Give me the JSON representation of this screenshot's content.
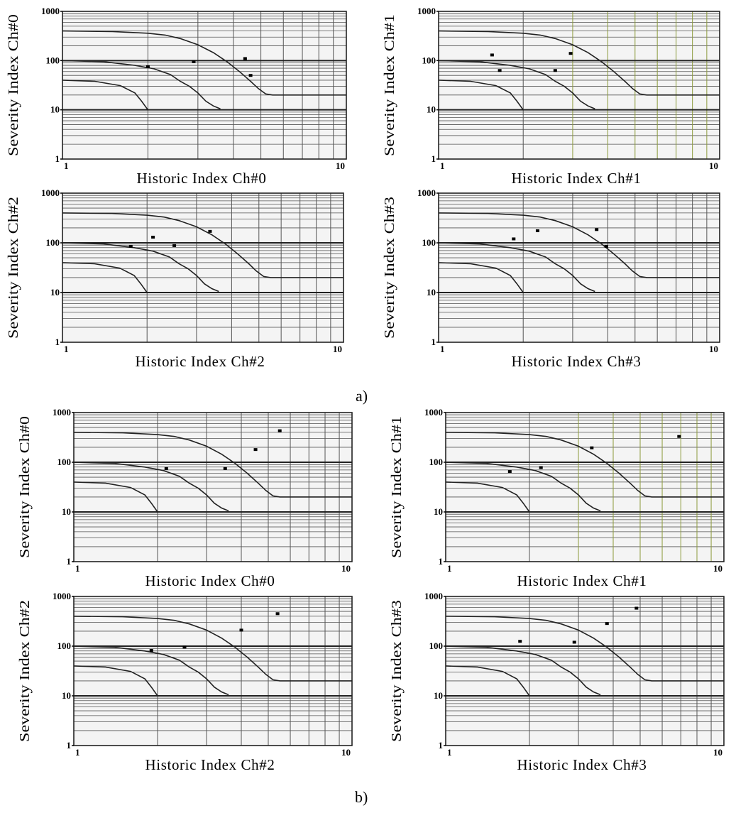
{
  "figure": {
    "labels": [
      "a)",
      "b)"
    ]
  },
  "colors": {
    "plot_background": "#f4f4f4",
    "grid_major": "#222222",
    "grid_minor": "#555555",
    "grid_minor_x_green": "#8c9a3c",
    "curve": "#222222",
    "point": "#000000"
  },
  "severity_curves": {
    "upper": {
      "x": [
        1,
        1.5,
        2.0,
        2.3,
        2.6,
        3.0,
        3.4,
        3.8,
        4.2,
        4.6,
        4.9,
        5.2,
        5.5,
        10
      ],
      "y": [
        400,
        390,
        360,
        330,
        280,
        210,
        145,
        95,
        60,
        38,
        27,
        21,
        20,
        20
      ]
    },
    "middle": {
      "x": [
        1,
        1.4,
        1.8,
        2.1,
        2.4,
        2.6,
        2.8,
        3.0,
        3.2,
        3.4,
        3.6
      ],
      "y": [
        100,
        95,
        80,
        68,
        52,
        38,
        30,
        22,
        15,
        12,
        10.5
      ]
    },
    "lower": {
      "x": [
        1,
        1.3,
        1.6,
        1.8,
        1.9,
        2.0
      ],
      "y": [
        40,
        38,
        31,
        22,
        15,
        10
      ]
    }
  },
  "chart_data": [
    {
      "type": "scatter",
      "group": "a",
      "log_x": true,
      "log_y": true,
      "xlim": [
        1,
        10
      ],
      "ylim": [
        1,
        1000
      ],
      "xlabel": "Historic Index Ch#0",
      "ylabel": "Severity Index Ch#0",
      "x_ticks": [
        "1",
        "10"
      ],
      "y_ticks": [
        "1",
        "10",
        "100",
        "1000"
      ],
      "points": [
        {
          "x": 2.0,
          "y": 75
        },
        {
          "x": 2.9,
          "y": 95
        },
        {
          "x": 4.4,
          "y": 110
        },
        {
          "x": 4.6,
          "y": 50
        }
      ]
    },
    {
      "type": "scatter",
      "group": "a",
      "log_x": true,
      "log_y": true,
      "xlim": [
        1,
        10
      ],
      "ylim": [
        1,
        1000
      ],
      "xlabel": "Historic Index Ch#1",
      "ylabel": "Severity Index Ch#1",
      "x_ticks": [
        "1",
        "10"
      ],
      "y_ticks": [
        "1",
        "10",
        "100",
        "1000"
      ],
      "points": [
        {
          "x": 1.55,
          "y": 130
        },
        {
          "x": 1.65,
          "y": 63
        },
        {
          "x": 2.6,
          "y": 63
        },
        {
          "x": 2.95,
          "y": 140
        }
      ]
    },
    {
      "type": "scatter",
      "group": "a",
      "log_x": true,
      "log_y": true,
      "xlim": [
        1,
        10
      ],
      "ylim": [
        1,
        1000
      ],
      "xlabel": "Historic Index Ch#2",
      "ylabel": "Severity Index Ch#2",
      "x_ticks": [
        "1",
        "10"
      ],
      "y_ticks": [
        "1",
        "10",
        "100",
        "1000"
      ],
      "points": [
        {
          "x": 1.75,
          "y": 85
        },
        {
          "x": 2.1,
          "y": 130
        },
        {
          "x": 2.5,
          "y": 88
        },
        {
          "x": 3.35,
          "y": 170
        }
      ]
    },
    {
      "type": "scatter",
      "group": "a",
      "log_x": true,
      "log_y": true,
      "xlim": [
        1,
        10
      ],
      "ylim": [
        1,
        1000
      ],
      "xlabel": "Historic Index Ch#3",
      "ylabel": "Severity Index Ch#3",
      "x_ticks": [
        "1",
        "10"
      ],
      "y_ticks": [
        "1",
        "10",
        "100",
        "1000"
      ],
      "points": [
        {
          "x": 1.85,
          "y": 120
        },
        {
          "x": 2.25,
          "y": 175
        },
        {
          "x": 3.65,
          "y": 185
        },
        {
          "x": 3.95,
          "y": 85
        }
      ]
    },
    {
      "type": "scatter",
      "group": "b",
      "log_x": true,
      "log_y": true,
      "xlim": [
        1,
        10
      ],
      "ylim": [
        1,
        1000
      ],
      "xlabel": "Historic Index Ch#0",
      "ylabel": "Severity Index Ch#0",
      "x_ticks": [
        "1",
        "10"
      ],
      "y_ticks": [
        "1",
        "10",
        "100",
        "1000"
      ],
      "points": [
        {
          "x": 2.15,
          "y": 75
        },
        {
          "x": 3.5,
          "y": 75
        },
        {
          "x": 4.5,
          "y": 180
        },
        {
          "x": 5.5,
          "y": 430
        }
      ]
    },
    {
      "type": "scatter",
      "group": "b",
      "log_x": true,
      "log_y": true,
      "xlim": [
        1,
        10
      ],
      "ylim": [
        1,
        1000
      ],
      "xlabel": "Historic Index Ch#1",
      "ylabel": "Severity Index Ch#1",
      "x_ticks": [
        "1",
        "10"
      ],
      "y_ticks": [
        "1",
        "10",
        "100",
        "1000"
      ],
      "points": [
        {
          "x": 1.7,
          "y": 65
        },
        {
          "x": 2.2,
          "y": 78
        },
        {
          "x": 3.35,
          "y": 195
        },
        {
          "x": 6.9,
          "y": 330
        }
      ]
    },
    {
      "type": "scatter",
      "group": "b",
      "log_x": true,
      "log_y": true,
      "xlim": [
        1,
        10
      ],
      "ylim": [
        1,
        1000
      ],
      "xlabel": "Historic Index Ch#2",
      "ylabel": "Severity Index Ch#2",
      "x_ticks": [
        "1",
        "10"
      ],
      "y_ticks": [
        "1",
        "10",
        "100",
        "1000"
      ],
      "points": [
        {
          "x": 1.9,
          "y": 82
        },
        {
          "x": 2.5,
          "y": 95
        },
        {
          "x": 4.0,
          "y": 210
        },
        {
          "x": 5.4,
          "y": 450
        }
      ]
    },
    {
      "type": "scatter",
      "group": "b",
      "log_x": true,
      "log_y": true,
      "xlim": [
        1,
        10
      ],
      "ylim": [
        1,
        1000
      ],
      "xlabel": "Historic Index Ch#3",
      "ylabel": "Severity Index Ch#3",
      "x_ticks": [
        "1",
        "10"
      ],
      "y_ticks": [
        "1",
        "10",
        "100",
        "1000"
      ],
      "points": [
        {
          "x": 1.85,
          "y": 125
        },
        {
          "x": 2.9,
          "y": 120
        },
        {
          "x": 3.8,
          "y": 285
        },
        {
          "x": 4.85,
          "y": 580
        }
      ]
    }
  ]
}
